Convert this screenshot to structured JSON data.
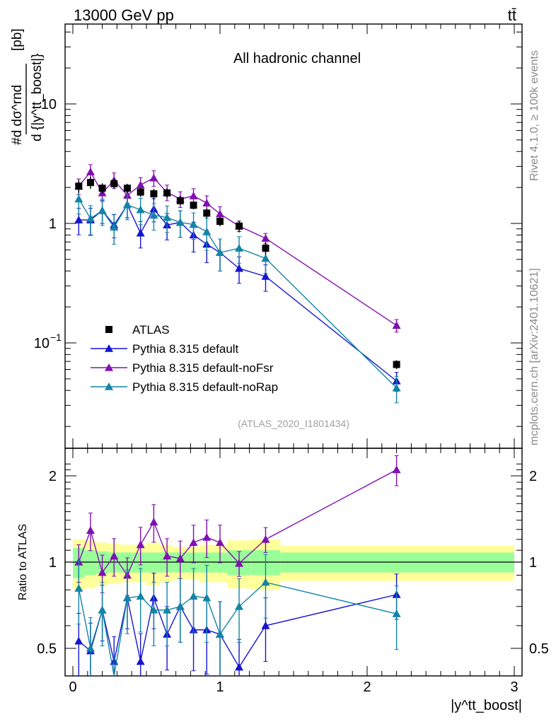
{
  "header": {
    "left_title": "13000 GeV pp",
    "right_title": "tt̄"
  },
  "chart_data": {
    "type": "scatter",
    "channel_label": "All hadronic channel",
    "reference": "(ATLAS_2020_I1801434)",
    "side_label_top": "Rivet 4.1.0, ≥ 100k events",
    "side_label_bottom": "mcplots.cern.ch [arXiv:2401.10621]",
    "ylabel_main_numerator": "#d dσ^rnd",
    "ylabel_main_denominator": "d {|y^tt_boost|}",
    "ylabel_main_unit": "[pb]",
    "ylabel_ratio": "Ratio to ATLAS",
    "xlabel": "|y^tt_boost|",
    "xlim": [
      0,
      3
    ],
    "ylim_main": [
      0.015,
      50
    ],
    "ylim_ratio": [
      0.35,
      2.3
    ],
    "x_ticks": [
      "0",
      "1",
      "2",
      "3"
    ],
    "main_y_ticks": [
      "10^−1",
      "1",
      "10"
    ],
    "ratio_y_ticks": [
      "0.5",
      "1",
      "2"
    ],
    "legend": {
      "position": "lower-left",
      "entries": [
        "ATLAS",
        "Pythia 8.315 default",
        "Pythia 8.315 default-noFsr",
        "Pythia 8.315 default-noRap"
      ]
    },
    "data": {
      "name": "ATLAS",
      "color": "#000000",
      "x": [
        0.04,
        0.12,
        0.2,
        0.28,
        0.37,
        0.46,
        0.55,
        0.64,
        0.73,
        0.82,
        0.91,
        1.0,
        1.13,
        1.31,
        2.2
      ],
      "y": [
        2.05,
        2.2,
        1.97,
        2.15,
        1.97,
        1.83,
        1.77,
        1.8,
        1.55,
        1.42,
        1.22,
        1.04,
        0.95,
        0.62,
        0.066
      ],
      "band_inner": [
        0.12,
        0.1,
        0.09,
        0.08,
        0.08,
        0.08,
        0.08,
        0.08,
        0.08,
        0.08,
        0.08,
        0.08,
        0.1,
        0.1,
        0.08
      ],
      "band_outer": [
        0.2,
        0.19,
        0.17,
        0.16,
        0.15,
        0.15,
        0.17,
        0.15,
        0.13,
        0.13,
        0.15,
        0.15,
        0.19,
        0.2,
        0.14
      ]
    },
    "series": [
      {
        "name": "Pythia 8.315 default",
        "color": "#1515d0",
        "y": [
          1.07,
          1.07,
          1.28,
          0.97,
          1.43,
          0.83,
          1.32,
          0.97,
          1.02,
          0.8,
          0.67,
          0.57,
          0.42,
          0.36,
          0.048
        ],
        "rel_err": [
          0.25,
          0.25,
          0.22,
          0.22,
          0.22,
          0.25,
          0.22,
          0.25,
          0.25,
          0.28,
          0.3,
          0.3,
          0.25,
          0.25,
          0.18
        ],
        "ratio": [
          0.53,
          0.49,
          0.68,
          0.45,
          0.75,
          0.45,
          0.75,
          0.56,
          0.7,
          0.58,
          0.58,
          0.56,
          0.43,
          0.6,
          0.77
        ]
      },
      {
        "name": "Pythia 8.315 default-noFsr",
        "color": "#8010b0",
        "y": [
          2.05,
          2.7,
          1.8,
          2.3,
          1.72,
          2.1,
          2.4,
          1.82,
          1.6,
          1.7,
          1.48,
          1.2,
          0.95,
          0.75,
          0.14
        ],
        "rel_err": [
          0.15,
          0.15,
          0.15,
          0.15,
          0.15,
          0.15,
          0.15,
          0.15,
          0.15,
          0.15,
          0.15,
          0.15,
          0.1,
          0.1,
          0.12
        ],
        "ratio": [
          1.0,
          1.29,
          0.92,
          1.05,
          0.9,
          1.15,
          1.38,
          1.05,
          1.03,
          1.17,
          1.22,
          1.17,
          0.99,
          1.2,
          2.1
        ]
      },
      {
        "name": "Pythia 8.315 default-noRap",
        "color": "#1284a6",
        "y": [
          1.6,
          1.1,
          1.28,
          0.93,
          1.43,
          1.3,
          1.17,
          1.12,
          1.02,
          0.98,
          0.85,
          0.57,
          0.62,
          0.51,
          0.042
        ],
        "rel_err": [
          0.25,
          0.28,
          0.25,
          0.28,
          0.25,
          0.25,
          0.25,
          0.25,
          0.25,
          0.25,
          0.3,
          0.3,
          0.25,
          0.25,
          0.25
        ],
        "ratio": [
          0.81,
          0.5,
          0.68,
          0.37,
          0.75,
          0.76,
          0.68,
          0.68,
          0.7,
          0.76,
          0.75,
          0.56,
          0.7,
          0.85,
          0.66
        ]
      }
    ]
  }
}
